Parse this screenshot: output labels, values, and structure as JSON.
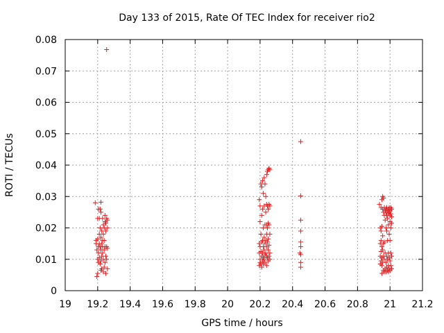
{
  "chart_data": {
    "type": "scatter",
    "title": "Day 133 of 2015, Rate Of TEC Index for receiver rio2",
    "xlabel": "GPS time / hours",
    "ylabel": "ROTI / TECUs",
    "xlim": [
      19,
      21.2
    ],
    "ylim": [
      0,
      0.08
    ],
    "x_ticks": [
      19,
      19.2,
      19.4,
      19.6,
      19.8,
      20,
      20.2,
      20.4,
      20.6,
      20.8,
      21,
      21.2
    ],
    "x_tick_labels": [
      "19",
      "19.2",
      "19.4",
      "19.6",
      "19.8",
      "20",
      "20.2",
      "20.4",
      "20.6",
      "20.8",
      "21",
      "21.2"
    ],
    "y_ticks": [
      0,
      0.01,
      0.02,
      0.03,
      0.04,
      0.05,
      0.06,
      0.07,
      0.08
    ],
    "y_tick_labels": [
      "0",
      "0.01",
      "0.02",
      "0.03",
      "0.04",
      "0.05",
      "0.06",
      "0.07",
      "0.08"
    ],
    "grid": true,
    "marker": "+",
    "color": "#e41a1c",
    "series": [
      {
        "name": "rio2",
        "points": [
          [
            19.185,
            0.028
          ],
          [
            19.19,
            0.016
          ],
          [
            19.19,
            0.015
          ],
          [
            19.195,
            0.013
          ],
          [
            19.195,
            0.0045
          ],
          [
            19.2,
            0.023
          ],
          [
            19.2,
            0.0165
          ],
          [
            19.2,
            0.01
          ],
          [
            19.2,
            0.0055
          ],
          [
            19.205,
            0.026
          ],
          [
            19.205,
            0.014
          ],
          [
            19.205,
            0.012
          ],
          [
            19.205,
            0.009
          ],
          [
            19.21,
            0.023
          ],
          [
            19.21,
            0.018
          ],
          [
            19.21,
            0.015
          ],
          [
            19.21,
            0.0105
          ],
          [
            19.215,
            0.026
          ],
          [
            19.215,
            0.02
          ],
          [
            19.215,
            0.014
          ],
          [
            19.215,
            0.0085
          ],
          [
            19.22,
            0.0282
          ],
          [
            19.22,
            0.025
          ],
          [
            19.22,
            0.017
          ],
          [
            19.22,
            0.013
          ],
          [
            19.22,
            0.0095
          ],
          [
            19.22,
            0.0065
          ],
          [
            19.225,
            0.019
          ],
          [
            19.225,
            0.015
          ],
          [
            19.225,
            0.011
          ],
          [
            19.225,
            0.007
          ],
          [
            19.23,
            0.023
          ],
          [
            19.23,
            0.016
          ],
          [
            19.23,
            0.014
          ],
          [
            19.23,
            0.012
          ],
          [
            19.235,
            0.021
          ],
          [
            19.235,
            0.018
          ],
          [
            19.235,
            0.01
          ],
          [
            19.235,
            0.006
          ],
          [
            19.24,
            0.02
          ],
          [
            19.24,
            0.016
          ],
          [
            19.24,
            0.013
          ],
          [
            19.24,
            0.0075
          ],
          [
            19.245,
            0.024
          ],
          [
            19.245,
            0.022
          ],
          [
            19.245,
            0.014
          ],
          [
            19.245,
            0.009
          ],
          [
            19.25,
            0.0215
          ],
          [
            19.25,
            0.019
          ],
          [
            19.25,
            0.011
          ],
          [
            19.25,
            0.0055
          ],
          [
            19.255,
            0.0768
          ],
          [
            19.255,
            0.023
          ],
          [
            19.255,
            0.014
          ],
          [
            19.255,
            0.01
          ],
          [
            19.26,
            0.0225
          ],
          [
            19.26,
            0.02
          ],
          [
            19.26,
            0.0135
          ],
          [
            19.26,
            0.007
          ],
          [
            20.195,
            0.029
          ],
          [
            20.195,
            0.015
          ],
          [
            20.195,
            0.012
          ],
          [
            20.195,
            0.008
          ],
          [
            20.2,
            0.027
          ],
          [
            20.2,
            0.022
          ],
          [
            20.2,
            0.014
          ],
          [
            20.2,
            0.01
          ],
          [
            20.2,
            0.009
          ],
          [
            20.205,
            0.034
          ],
          [
            20.205,
            0.018
          ],
          [
            20.205,
            0.0125
          ],
          [
            20.205,
            0.0085
          ],
          [
            20.21,
            0.033
          ],
          [
            20.21,
            0.024
          ],
          [
            20.21,
            0.0155
          ],
          [
            20.21,
            0.011
          ],
          [
            20.21,
            0.0075
          ],
          [
            20.215,
            0.035
          ],
          [
            20.215,
            0.026
          ],
          [
            20.215,
            0.016
          ],
          [
            20.215,
            0.012
          ],
          [
            20.215,
            0.0095
          ],
          [
            20.22,
            0.031
          ],
          [
            20.22,
            0.02
          ],
          [
            20.22,
            0.014
          ],
          [
            20.22,
            0.0105
          ],
          [
            20.22,
            0.0085
          ],
          [
            20.225,
            0.036
          ],
          [
            20.225,
            0.027
          ],
          [
            20.225,
            0.017
          ],
          [
            20.225,
            0.013
          ],
          [
            20.225,
            0.01
          ],
          [
            20.23,
            0.034
          ],
          [
            20.23,
            0.021
          ],
          [
            20.23,
            0.015
          ],
          [
            20.23,
            0.0115
          ],
          [
            20.23,
            0.009
          ],
          [
            20.235,
            0.03
          ],
          [
            20.235,
            0.025
          ],
          [
            20.235,
            0.016
          ],
          [
            20.235,
            0.012
          ],
          [
            20.24,
            0.037
          ],
          [
            20.24,
            0.0275
          ],
          [
            20.24,
            0.021
          ],
          [
            20.24,
            0.018
          ],
          [
            20.24,
            0.014
          ],
          [
            20.24,
            0.011
          ],
          [
            20.24,
            0.008
          ],
          [
            20.245,
            0.038
          ],
          [
            20.245,
            0.027
          ],
          [
            20.245,
            0.02
          ],
          [
            20.245,
            0.0155
          ],
          [
            20.245,
            0.0105
          ],
          [
            20.25,
            0.0385
          ],
          [
            20.25,
            0.026
          ],
          [
            20.25,
            0.0215
          ],
          [
            20.25,
            0.0165
          ],
          [
            20.25,
            0.013
          ],
          [
            20.25,
            0.0095
          ],
          [
            20.255,
            0.039
          ],
          [
            20.255,
            0.0275
          ],
          [
            20.255,
            0.021
          ],
          [
            20.255,
            0.0145
          ],
          [
            20.255,
            0.011
          ],
          [
            20.26,
            0.0385
          ],
          [
            20.26,
            0.027
          ],
          [
            20.26,
            0.018
          ],
          [
            20.26,
            0.012
          ],
          [
            20.26,
            0.01
          ],
          [
            20.445,
            0.012
          ],
          [
            20.45,
            0.0475
          ],
          [
            20.45,
            0.0302
          ],
          [
            20.45,
            0.0225
          ],
          [
            20.45,
            0.019
          ],
          [
            20.45,
            0.0155
          ],
          [
            20.45,
            0.014
          ],
          [
            20.45,
            0.0115
          ],
          [
            20.45,
            0.009
          ],
          [
            20.45,
            0.0075
          ],
          [
            20.935,
            0.0275
          ],
          [
            20.94,
            0.02
          ],
          [
            20.94,
            0.015
          ],
          [
            20.94,
            0.011
          ],
          [
            20.94,
            0.0085
          ],
          [
            20.945,
            0.0265
          ],
          [
            20.945,
            0.019
          ],
          [
            20.945,
            0.016
          ],
          [
            20.945,
            0.0125
          ],
          [
            20.945,
            0.0095
          ],
          [
            20.95,
            0.029
          ],
          [
            20.95,
            0.0205
          ],
          [
            20.95,
            0.014
          ],
          [
            20.95,
            0.0105
          ],
          [
            20.95,
            0.008
          ],
          [
            20.95,
            0.0055
          ],
          [
            20.955,
            0.03
          ],
          [
            20.955,
            0.026
          ],
          [
            20.955,
            0.0175
          ],
          [
            20.955,
            0.013
          ],
          [
            20.955,
            0.009
          ],
          [
            20.96,
            0.0295
          ],
          [
            20.96,
            0.025
          ],
          [
            20.96,
            0.015
          ],
          [
            20.96,
            0.011
          ],
          [
            20.96,
            0.0065
          ],
          [
            20.965,
            0.0265
          ],
          [
            20.965,
            0.024
          ],
          [
            20.965,
            0.0155
          ],
          [
            20.965,
            0.01
          ],
          [
            20.965,
            0.006
          ],
          [
            20.97,
            0.0255
          ],
          [
            20.97,
            0.0225
          ],
          [
            20.97,
            0.012
          ],
          [
            20.97,
            0.007
          ],
          [
            20.975,
            0.026
          ],
          [
            20.975,
            0.025
          ],
          [
            20.975,
            0.02
          ],
          [
            20.975,
            0.009
          ],
          [
            20.975,
            0.006
          ],
          [
            20.98,
            0.0265
          ],
          [
            20.98,
            0.024
          ],
          [
            20.98,
            0.019
          ],
          [
            20.98,
            0.011
          ],
          [
            20.98,
            0.0075
          ],
          [
            20.985,
            0.0255
          ],
          [
            20.985,
            0.023
          ],
          [
            20.985,
            0.016
          ],
          [
            20.985,
            0.01
          ],
          [
            20.985,
            0.0065
          ],
          [
            20.99,
            0.026
          ],
          [
            20.99,
            0.0245
          ],
          [
            20.99,
            0.021
          ],
          [
            20.99,
            0.012
          ],
          [
            20.99,
            0.008
          ],
          [
            20.99,
            0.006
          ],
          [
            20.995,
            0.0265
          ],
          [
            20.995,
            0.025
          ],
          [
            20.995,
            0.018
          ],
          [
            20.995,
            0.0105
          ],
          [
            20.995,
            0.007
          ],
          [
            21.0,
            0.0255
          ],
          [
            21.0,
            0.024
          ],
          [
            21.0,
            0.022
          ],
          [
            21.0,
            0.016
          ],
          [
            21.0,
            0.0095
          ],
          [
            21.0,
            0.0065
          ],
          [
            21.005,
            0.0265
          ],
          [
            21.005,
            0.0245
          ],
          [
            21.005,
            0.02
          ],
          [
            21.005,
            0.012
          ],
          [
            21.005,
            0.008
          ],
          [
            21.01,
            0.026
          ],
          [
            21.01,
            0.0235
          ],
          [
            21.01,
            0.0215
          ],
          [
            21.01,
            0.011
          ],
          [
            21.01,
            0.007
          ]
        ]
      }
    ]
  }
}
